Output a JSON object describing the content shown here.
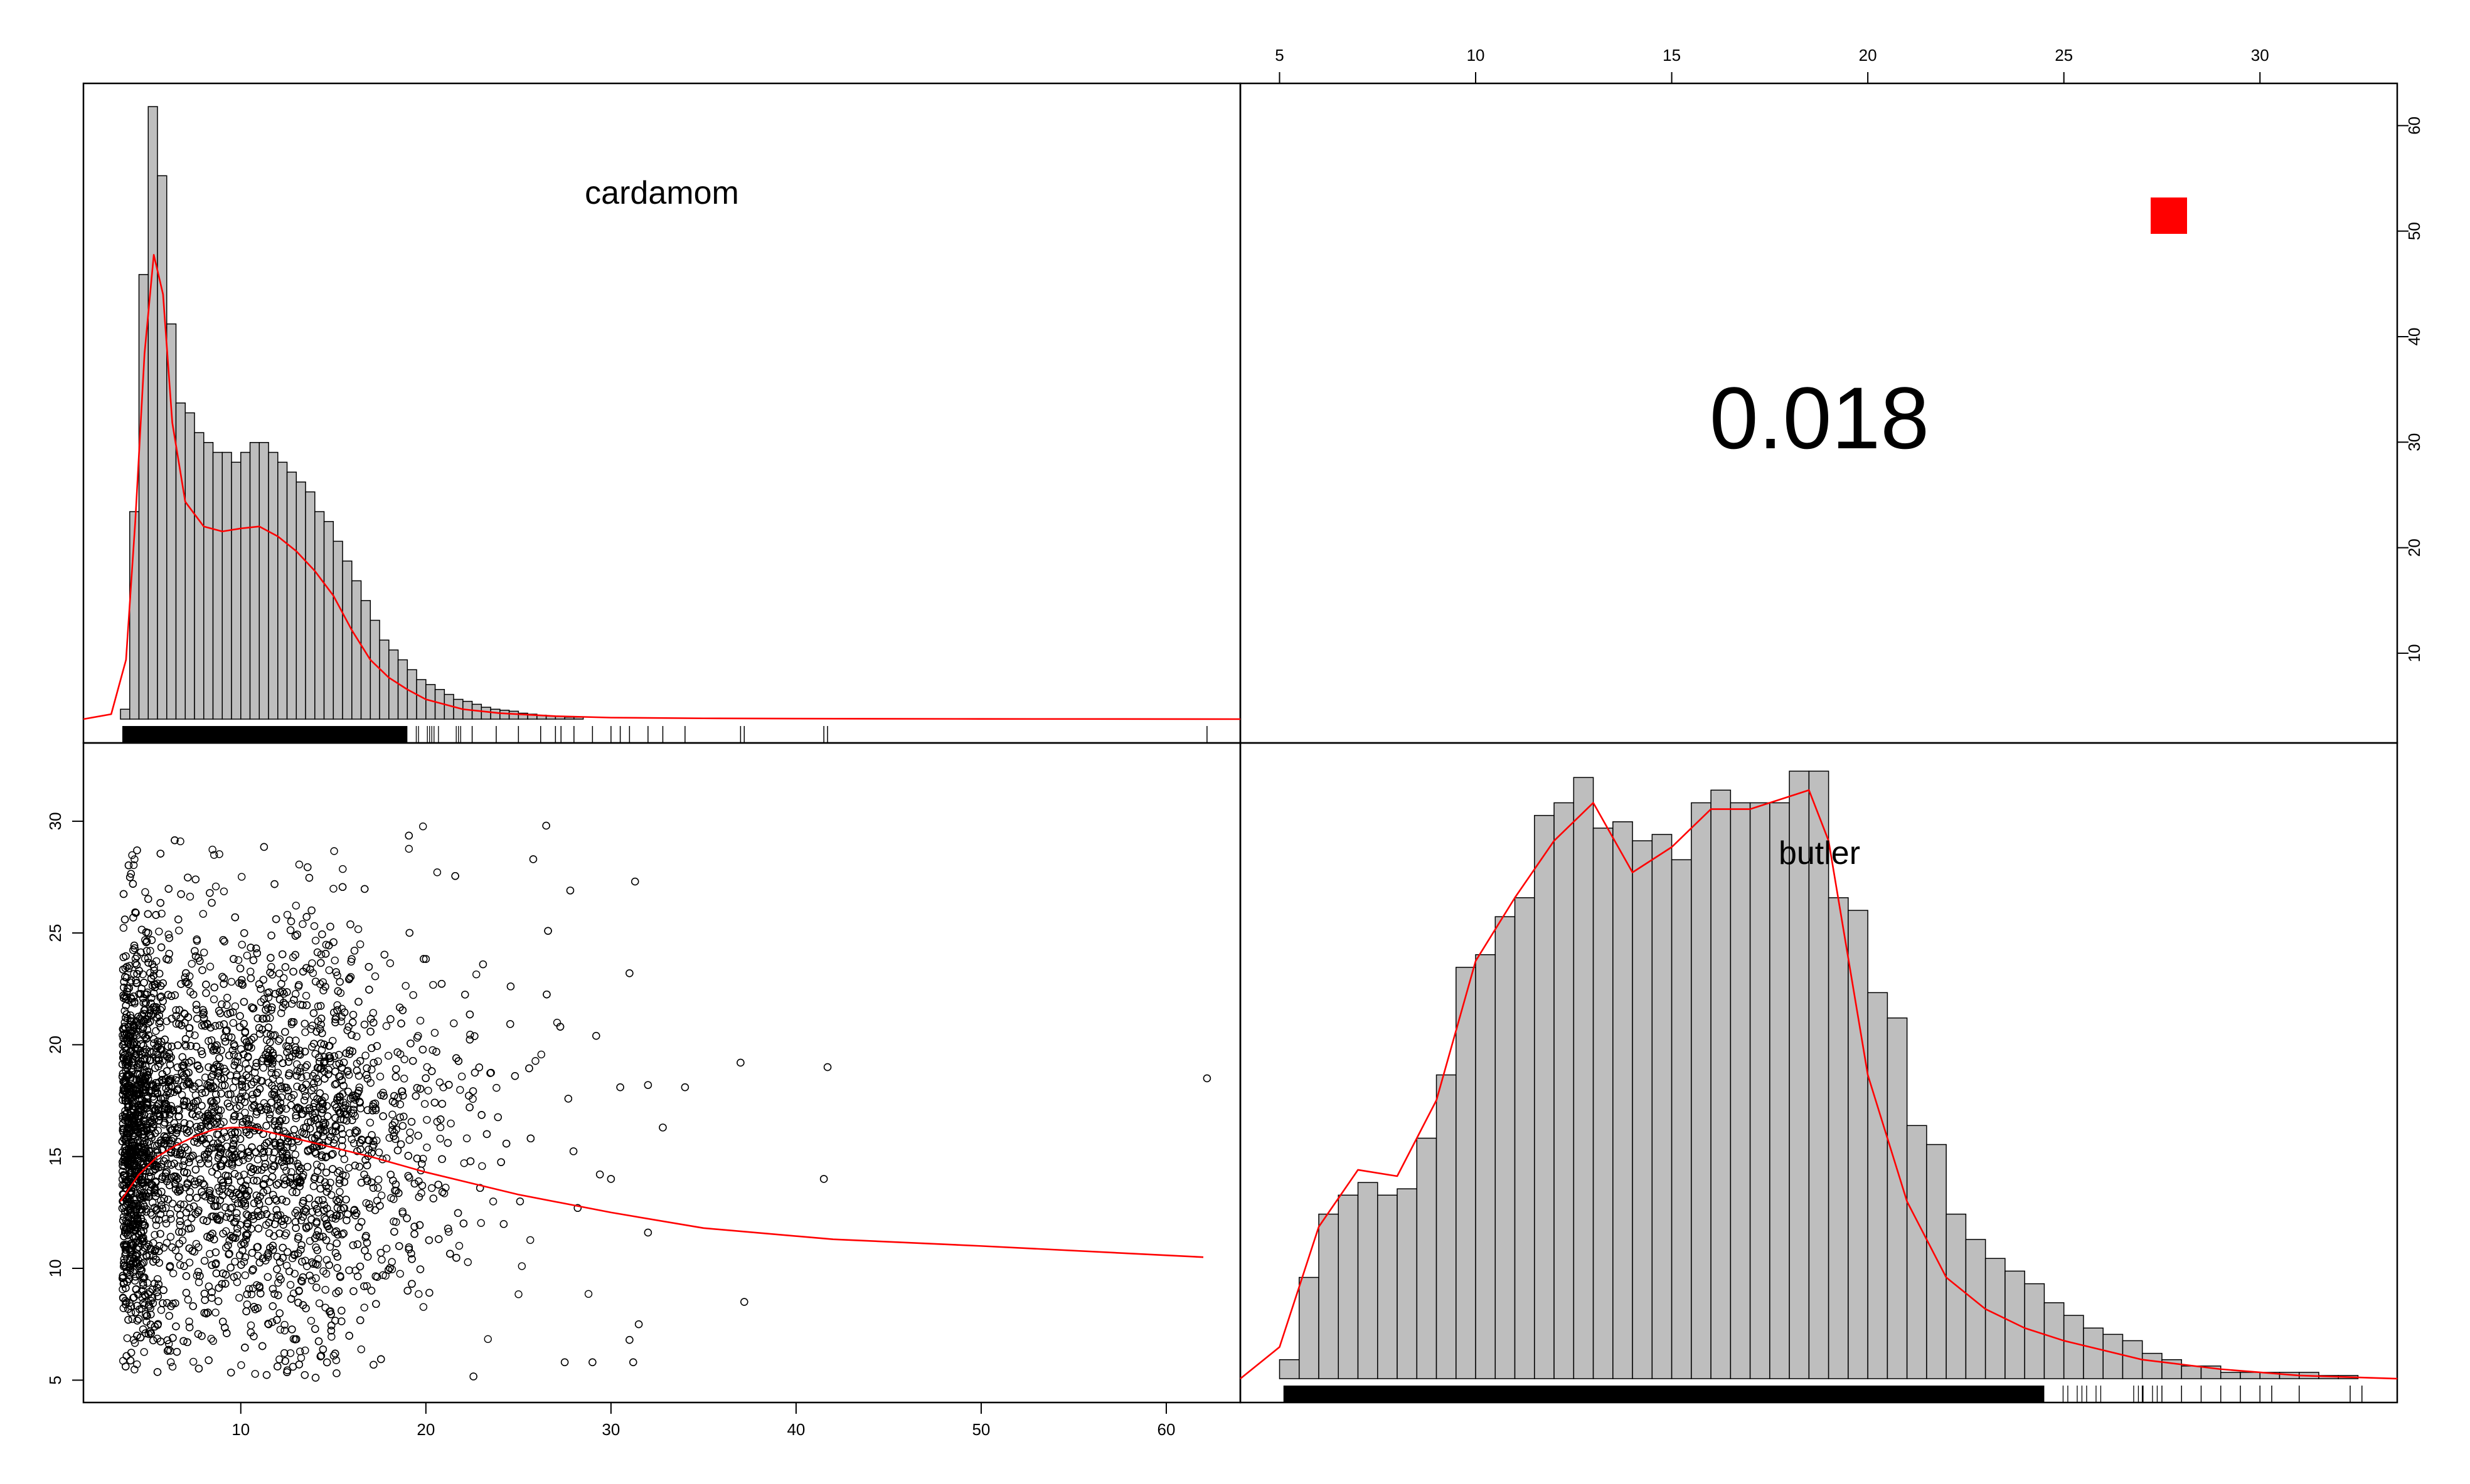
{
  "chart_data": {
    "type": "scatter-matrix",
    "variables": [
      "cardamom",
      "butler"
    ],
    "correlation": {
      "value_label": "0.018",
      "significance_marker_color": "#ff0000"
    },
    "colors": {
      "hist_fill": "#bebebe",
      "density_line": "#ff0000",
      "loess_line": "#ff0000",
      "points": "#000000"
    },
    "axes": {
      "cardamom_range": [
        1.5,
        64
      ],
      "butler_range": [
        4.0,
        33.5
      ],
      "bottom_ticks": [
        10,
        20,
        30,
        40,
        50,
        60
      ],
      "top_ticks": [
        5,
        10,
        15,
        20,
        25,
        30
      ],
      "left_ticks": [
        5,
        10,
        15,
        20,
        25,
        30
      ],
      "right_ticks": [
        10,
        20,
        30,
        40,
        50,
        60
      ]
    },
    "histograms": [
      {
        "variable": "cardamom",
        "bin_start": 3.5,
        "bin_width": 0.5,
        "counts": [
          1,
          21,
          45,
          62,
          55,
          40,
          32,
          31,
          29,
          28,
          27,
          27,
          26,
          27,
          28,
          28,
          27,
          26,
          25,
          24,
          23,
          21,
          20,
          18,
          16,
          14,
          12,
          10,
          8,
          7,
          6,
          5,
          4,
          3.5,
          3,
          2.5,
          2,
          1.8,
          1.5,
          1.2,
          1,
          0.9,
          0.8,
          0.6,
          0.5,
          0.4,
          0.3,
          0.3,
          0.2,
          0.2
        ],
        "max_count": 62
      },
      {
        "variable": "butler",
        "bin_start": 5.0,
        "bin_width": 0.5,
        "counts": [
          3,
          16,
          26,
          29,
          31,
          29,
          30,
          38,
          48,
          65,
          67,
          73,
          76,
          89,
          91,
          95,
          87,
          88,
          85,
          86,
          82,
          91,
          93,
          91,
          91,
          91,
          96,
          96,
          76,
          74,
          61,
          57,
          40,
          37,
          26,
          22,
          19,
          17,
          15,
          12,
          10,
          8,
          7,
          6,
          4,
          3,
          2,
          2,
          1,
          1,
          1,
          1,
          1,
          0.5,
          0.5
        ],
        "max_count": 96
      }
    ],
    "density_curves": [
      {
        "variable": "cardamom",
        "x": [
          1.5,
          3.0,
          3.8,
          4.3,
          4.8,
          5.3,
          5.8,
          6.3,
          7.0,
          8.0,
          9.0,
          10.0,
          11.0,
          12.0,
          13.0,
          14.0,
          15.0,
          16.0,
          17.0,
          18.0,
          19.0,
          20.0,
          22.0,
          24.0,
          27.0,
          30.0,
          35.0,
          40.0,
          50.0,
          64.0
        ],
        "y": [
          0,
          0.5,
          6,
          20,
          37,
          47,
          43,
          30,
          22,
          19.5,
          19,
          19.3,
          19.5,
          18.5,
          17,
          15,
          12.5,
          9,
          6,
          4.2,
          3,
          2,
          1,
          0.6,
          0.3,
          0.15,
          0.08,
          0.05,
          0.02,
          0
        ]
      },
      {
        "variable": "butler",
        "x": [
          4.0,
          5.0,
          6.0,
          7.0,
          8.0,
          9.0,
          10.0,
          11.0,
          12.0,
          13.0,
          14.0,
          15.0,
          16.0,
          17.0,
          18.0,
          18.5,
          19.0,
          20.0,
          21.0,
          22.0,
          23.0,
          24.0,
          25.0,
          27.0,
          29.0,
          31.0,
          33.5
        ],
        "y": [
          0,
          5,
          24,
          33,
          32,
          44,
          66,
          76,
          85,
          91,
          80,
          84,
          90,
          90,
          92,
          93,
          85,
          48,
          28,
          16,
          11,
          8,
          6,
          3,
          1.5,
          0.5,
          0
        ]
      }
    ],
    "loess_curve": {
      "x": [
        3.5,
        4.5,
        5.5,
        6.5,
        7.5,
        8.5,
        9.5,
        10.5,
        11.5,
        13,
        15,
        17,
        20,
        25,
        30,
        35,
        42,
        50,
        62
      ],
      "y": [
        13.0,
        14.2,
        15.0,
        15.5,
        15.9,
        16.2,
        16.3,
        16.3,
        16.1,
        15.8,
        15.4,
        15.0,
        14.3,
        13.3,
        12.5,
        11.8,
        11.3,
        11.0,
        10.5
      ]
    },
    "scatter_bulk": {
      "note_count": 6000,
      "x_mode_region": [
        3.5,
        18
      ],
      "y_mean": 16.0
    },
    "scatter_outliers": [
      {
        "x": 62.2,
        "y": 18.5
      },
      {
        "x": 41.7,
        "y": 19.0
      },
      {
        "x": 41.5,
        "y": 14.0
      },
      {
        "x": 37.0,
        "y": 19.2
      },
      {
        "x": 37.2,
        "y": 8.5
      },
      {
        "x": 34.0,
        "y": 18.1
      },
      {
        "x": 32.8,
        "y": 16.3
      },
      {
        "x": 32.0,
        "y": 11.6
      },
      {
        "x": 32.0,
        "y": 18.2
      },
      {
        "x": 31.3,
        "y": 27.3
      },
      {
        "x": 31.0,
        "y": 23.2
      },
      {
        "x": 31.0,
        "y": 6.8
      },
      {
        "x": 31.2,
        "y": 5.8
      },
      {
        "x": 31.5,
        "y": 7.5
      },
      {
        "x": 30.5,
        "y": 18.1
      },
      {
        "x": 30.0,
        "y": 14.0
      },
      {
        "x": 29.4,
        "y": 14.2
      },
      {
        "x": 29.2,
        "y": 20.4
      },
      {
        "x": 28.2,
        "y": 12.7
      },
      {
        "x": 27.8,
        "y": 26.9
      },
      {
        "x": 26.5,
        "y": 29.8
      },
      {
        "x": 25.8,
        "y": 28.3
      },
      {
        "x": 27.5,
        "y": 5.8
      },
      {
        "x": 29.0,
        "y": 5.8
      }
    ],
    "rug": {
      "cardamom_sparse": [
        22.5,
        23.8,
        25.0,
        26.2,
        27.0,
        27.3,
        28.0,
        29.0,
        30.0,
        30.5,
        31.0,
        32.0,
        32.8,
        34.0,
        37.0,
        37.2,
        41.5,
        41.7,
        62.2
      ],
      "butler_sparse": [
        27.0,
        27.5,
        28.0,
        28.5,
        29.0,
        29.5,
        30.0,
        30.3,
        31.0,
        32.3,
        32.6
      ]
    }
  }
}
